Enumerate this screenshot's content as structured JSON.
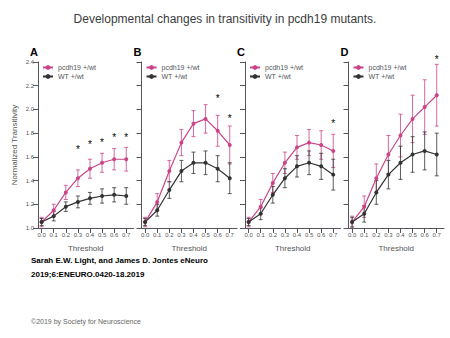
{
  "title": "Developmental changes in transitivity in pcdh19 mutants.",
  "annotations": [
    "Sarah E.W. Light, and James D. Jontes eNeuro",
    "2019;6:ENEURO.0420-18.2019",
    "©2019 by Society for Neuroscience"
  ],
  "chart_data": [
    {
      "type": "line",
      "title": "A",
      "xlabel": "Threshold",
      "ylabel": "Normalized Transitivity",
      "x": [
        0.0,
        0.1,
        0.2,
        0.3,
        0.4,
        0.5,
        0.6,
        0.7
      ],
      "xlim": [
        -0.03,
        0.76
      ],
      "xticks": [
        {
          "value": 0.0,
          "label": "0.0"
        },
        0.1,
        0.2,
        0.3,
        0.4,
        0.5,
        0.6,
        0.7
      ],
      "ylim": [
        1.0,
        2.4
      ],
      "yticks": [
        {
          "value": 1.0,
          "label": "1.0"
        },
        1.2,
        1.4,
        1.6,
        1.8,
        {
          "value": 2.0,
          "label": "2.0"
        },
        2.2,
        2.4
      ],
      "grid": false,
      "legend": "upper left",
      "marker": "circle",
      "series": [
        {
          "name": "pcdh19 +/wt",
          "color": "#cc4488",
          "values": [
            1.05,
            1.15,
            1.3,
            1.42,
            1.5,
            1.55,
            1.58,
            1.58
          ],
          "yerr": [
            0.04,
            0.05,
            0.06,
            0.07,
            0.08,
            0.08,
            0.09,
            0.1
          ]
        },
        {
          "name": "WT +/wt",
          "color": "#333333",
          "values": [
            1.05,
            1.1,
            1.18,
            1.22,
            1.25,
            1.27,
            1.28,
            1.27
          ],
          "yerr": [
            0.03,
            0.04,
            0.04,
            0.05,
            0.05,
            0.06,
            0.06,
            0.07
          ]
        }
      ],
      "annotations": [
        {
          "x": 0.3,
          "y": 1.62,
          "text": "*"
        },
        {
          "x": 0.4,
          "y": 1.66,
          "text": "*"
        },
        {
          "x": 0.5,
          "y": 1.68,
          "text": "*"
        },
        {
          "x": 0.6,
          "y": 1.72,
          "text": "*"
        },
        {
          "x": 0.7,
          "y": 1.72,
          "text": "*"
        }
      ]
    },
    {
      "type": "line",
      "title": "B",
      "xlabel": "Threshold",
      "x": [
        0.0,
        0.1,
        0.2,
        0.3,
        0.4,
        0.5,
        0.6,
        0.7
      ],
      "xlim": [
        -0.03,
        0.76
      ],
      "xticks": [
        {
          "value": 0.0,
          "label": "0.0"
        },
        0.1,
        0.2,
        0.3,
        0.4,
        0.5,
        0.6,
        0.7
      ],
      "ylim": [
        1.0,
        2.4
      ],
      "yticks": [
        {
          "value": 1.0,
          "label": "1.0"
        },
        1.2,
        1.4,
        1.6,
        1.8,
        {
          "value": 2.0,
          "label": "2.0"
        },
        2.2,
        2.4
      ],
      "tick_labels": "x",
      "grid": false,
      "legend": "upper left",
      "marker": "circle",
      "series": [
        {
          "name": "pcdh19 +/wt",
          "color": "#cc4488",
          "values": [
            1.05,
            1.22,
            1.48,
            1.72,
            1.88,
            1.92,
            1.82,
            1.7
          ],
          "yerr": [
            0.04,
            0.07,
            0.09,
            0.11,
            0.11,
            0.12,
            0.13,
            0.16
          ]
        },
        {
          "name": "WT +/wt",
          "color": "#333333",
          "values": [
            1.05,
            1.15,
            1.32,
            1.48,
            1.55,
            1.55,
            1.5,
            1.42
          ],
          "yerr": [
            0.03,
            0.05,
            0.07,
            0.09,
            0.09,
            0.1,
            0.11,
            0.13
          ]
        }
      ],
      "annotations": [
        {
          "x": 0.6,
          "y": 2.05,
          "text": "*"
        },
        {
          "x": 0.7,
          "y": 1.88,
          "text": "*"
        }
      ]
    },
    {
      "type": "line",
      "title": "C",
      "xlabel": "Threshold",
      "x": [
        0.0,
        0.1,
        0.2,
        0.3,
        0.4,
        0.5,
        0.6,
        0.7
      ],
      "xlim": [
        -0.03,
        0.76
      ],
      "xticks": [
        {
          "value": 0.0,
          "label": "0.0"
        },
        0.1,
        0.2,
        0.3,
        0.4,
        0.5,
        0.6,
        0.7
      ],
      "ylim": [
        1.0,
        2.4
      ],
      "yticks": [
        {
          "value": 1.0,
          "label": "1.0"
        },
        1.2,
        1.4,
        1.6,
        1.8,
        {
          "value": 2.0,
          "label": "2.0"
        },
        2.2,
        2.4
      ],
      "tick_labels": "x",
      "grid": false,
      "legend": "upper left",
      "marker": "circle",
      "series": [
        {
          "name": "pcdh19 +/wt",
          "color": "#cc4488",
          "values": [
            1.05,
            1.18,
            1.38,
            1.55,
            1.68,
            1.72,
            1.7,
            1.65
          ],
          "yerr": [
            0.04,
            0.06,
            0.08,
            0.09,
            0.1,
            0.11,
            0.12,
            0.14
          ]
        },
        {
          "name": "WT +/wt",
          "color": "#333333",
          "values": [
            1.05,
            1.12,
            1.28,
            1.42,
            1.52,
            1.55,
            1.52,
            1.45
          ],
          "yerr": [
            0.03,
            0.05,
            0.07,
            0.08,
            0.09,
            0.1,
            0.11,
            0.13
          ]
        }
      ],
      "annotations": [
        {
          "x": 0.7,
          "y": 1.84,
          "text": "*"
        }
      ]
    },
    {
      "type": "line",
      "title": "D",
      "xlabel": "Threshold",
      "x": [
        0.0,
        0.1,
        0.2,
        0.3,
        0.4,
        0.5,
        0.6,
        0.7
      ],
      "xlim": [
        -0.03,
        0.76
      ],
      "xticks": [
        {
          "value": 0.0,
          "label": "0.0"
        },
        0.1,
        0.2,
        0.3,
        0.4,
        0.5,
        0.6,
        0.7
      ],
      "ylim": [
        1.0,
        2.4
      ],
      "yticks": [
        {
          "value": 1.0,
          "label": "1.0"
        },
        1.2,
        1.4,
        1.6,
        1.8,
        {
          "value": 2.0,
          "label": "2.0"
        },
        2.2,
        2.4
      ],
      "tick_labels": "x",
      "grid": false,
      "legend": "upper left",
      "marker": "circle",
      "series": [
        {
          "name": "pcdh19 +/wt",
          "color": "#cc4488",
          "values": [
            1.05,
            1.18,
            1.42,
            1.62,
            1.78,
            1.92,
            2.02,
            2.12
          ],
          "yerr": [
            0.05,
            0.09,
            0.12,
            0.16,
            0.18,
            0.2,
            0.23,
            0.26
          ]
        },
        {
          "name": "WT +/wt",
          "color": "#333333",
          "values": [
            1.05,
            1.12,
            1.3,
            1.45,
            1.55,
            1.62,
            1.65,
            1.62
          ],
          "yerr": [
            0.04,
            0.07,
            0.1,
            0.12,
            0.14,
            0.15,
            0.16,
            0.18
          ]
        }
      ],
      "annotations": [
        {
          "x": 0.7,
          "y": 2.38,
          "text": "*"
        }
      ]
    }
  ]
}
